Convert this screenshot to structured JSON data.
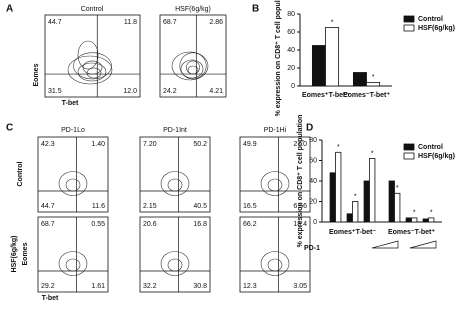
{
  "panels": {
    "A": {
      "label": "A",
      "columns": [
        "Control",
        "HSF(6g/kg)"
      ],
      "y_label": "Eomes",
      "x_label": "T-bet",
      "plots": [
        [
          "44.7",
          "11.8",
          "31.5",
          "12.0"
        ],
        [
          "68.7",
          "2.86",
          "24.2",
          "4.21"
        ]
      ]
    },
    "C": {
      "label": "C",
      "columns": [
        "PD-1Lo",
        "PD-1Int",
        "PD-1Hi"
      ],
      "rows": [
        "Control",
        "HSF(6g/kg)"
      ],
      "y_label": "Eomes",
      "x_label": "T-bet",
      "plots": [
        [
          [
            "42.3",
            "1.40",
            "44.7",
            "11.6"
          ],
          [
            "7.20",
            "50.2",
            "2.15",
            "40.5"
          ],
          [
            "49.9",
            "27.0",
            "16.5",
            "6.56"
          ]
        ],
        [
          [
            "68.7",
            "0.55",
            "29.2",
            "1.61"
          ],
          [
            "20.6",
            "16.8",
            "32.2",
            "30.8"
          ],
          [
            "66.2",
            "18.4",
            "12.3",
            "3.05"
          ]
        ]
      ]
    }
  },
  "chart_data": [
    {
      "type": "bar",
      "panel": "B",
      "ylabel": "% expression on CD8⁺ T cell population",
      "categories": [
        "Eomes⁺T-bet⁻",
        "Eomes⁻T-bet⁺"
      ],
      "series": [
        {
          "name": "Control",
          "color": "#111111",
          "values": [
            45,
            15
          ]
        },
        {
          "name": "HSF(6g/kg)",
          "color": "#ffffff",
          "values": [
            65,
            4
          ]
        }
      ],
      "significance": [
        "*",
        "*"
      ],
      "ylim": [
        0,
        80
      ],
      "yticks": [
        0,
        20,
        40,
        60,
        80
      ],
      "legend": "top-right"
    },
    {
      "type": "bar",
      "panel": "D",
      "ylabel": "% expression on CD8⁺ T cell population",
      "xlabel": "PD-1",
      "groups": [
        "Eomes⁺T-bet⁻",
        "Eomes⁻T-bet⁺"
      ],
      "categories": [
        null,
        null,
        null,
        null,
        null,
        null
      ],
      "series": [
        {
          "name": "Control",
          "color": "#111111",
          "values": [
            48,
            8,
            40,
            40,
            4,
            3
          ]
        },
        {
          "name": "HSF(6g/kg)",
          "color": "#ffffff",
          "values": [
            68,
            20,
            62,
            28,
            4,
            4
          ]
        }
      ],
      "significance": [
        "*",
        "*",
        "*",
        "*",
        "*",
        "*"
      ],
      "ylim": [
        0,
        80
      ],
      "yticks": [
        0,
        20,
        40,
        60,
        80
      ],
      "legend": "top-right"
    }
  ]
}
